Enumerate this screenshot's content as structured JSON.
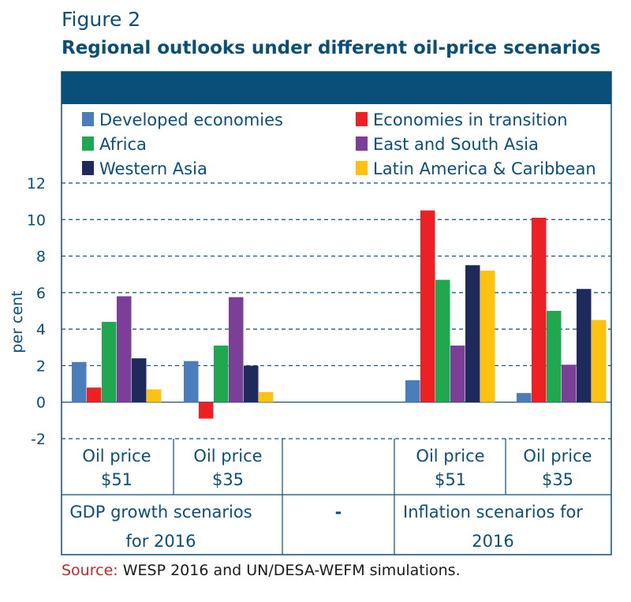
{
  "figure_label": "Figure 2",
  "title": "Regional outlooks under different oil-price scenarios",
  "source_label": "Source:",
  "source_text": "WESP 2016 and UN/DESA-WEFM simulations.",
  "chart_data": {
    "type": "bar",
    "ylabel": "per cent",
    "ylim": [
      -2,
      12
    ],
    "yticks": [
      "-2",
      "0",
      "2",
      "4",
      "6",
      "8",
      "10",
      "12"
    ],
    "grid": true,
    "legend_position": "top",
    "series": [
      {
        "name": "Developed economies",
        "color": "#4a7ebb"
      },
      {
        "name": "Economies in transition",
        "color": "#ed2024"
      },
      {
        "name": "Africa",
        "color": "#1fa84f"
      },
      {
        "name": "East and South Asia",
        "color": "#7b3f98"
      },
      {
        "name": "Western Asia",
        "color": "#1f2a5c"
      },
      {
        "name": "Latin America & Caribbean",
        "color": "#ffc20e"
      }
    ],
    "groups": [
      {
        "line1": "Oil price",
        "line2": "$51",
        "values": [
          2.2,
          0.8,
          4.4,
          5.8,
          2.4,
          0.7
        ]
      },
      {
        "line1": "Oil price",
        "line2": "$35",
        "values": [
          2.25,
          -0.9,
          3.1,
          5.75,
          2.0,
          0.55
        ]
      },
      {
        "line1": "",
        "line2": "",
        "values": []
      },
      {
        "line1": "Oil price",
        "line2": "$51",
        "values": [
          1.2,
          10.5,
          6.7,
          3.1,
          7.5,
          7.2
        ]
      },
      {
        "line1": "Oil price",
        "line2": "$35",
        "values": [
          0.5,
          10.1,
          5.0,
          2.05,
          6.2,
          4.5
        ]
      }
    ],
    "sections": [
      {
        "line1": "GDP growth scenarios",
        "line2": "for 2016"
      },
      {
        "line1": "-",
        "line2": ""
      },
      {
        "line1": "Inflation scenarios for",
        "line2": "2016"
      }
    ]
  }
}
